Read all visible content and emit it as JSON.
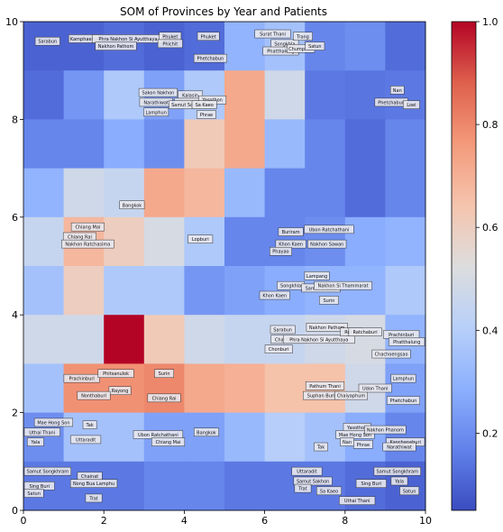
{
  "chart_data": {
    "type": "heatmap",
    "title": "SOM of Provinces by Year and Patients",
    "xlabel": "",
    "ylabel": "",
    "xlim": [
      0,
      10
    ],
    "ylim": [
      0,
      10
    ],
    "x_ticks": [
      "0",
      "2",
      "4",
      "6",
      "8",
      "10"
    ],
    "y_ticks": [
      "0",
      "2",
      "4",
      "6",
      "8",
      "10"
    ],
    "colorbar": {
      "range": [
        0.05,
        1.0
      ],
      "ticks": [
        "0.2",
        "0.4",
        "0.6",
        "0.8",
        "1.0"
      ],
      "tick_values": [
        0.2,
        0.4,
        0.6,
        0.8,
        1.0
      ],
      "colormap": "coolwarm"
    },
    "grid_values": [
      [
        0.1,
        0.1,
        0.12,
        0.1,
        0.12,
        0.3,
        0.35,
        0.18,
        0.2,
        0.12
      ],
      [
        0.12,
        0.22,
        0.38,
        0.25,
        0.38,
        0.72,
        0.48,
        0.15,
        0.14,
        0.15
      ],
      [
        0.18,
        0.18,
        0.28,
        0.2,
        0.62,
        0.72,
        0.32,
        0.18,
        0.12,
        0.18
      ],
      [
        0.3,
        0.48,
        0.45,
        0.72,
        0.68,
        0.32,
        0.18,
        0.18,
        0.12,
        0.18
      ],
      [
        0.45,
        0.68,
        0.6,
        0.5,
        0.38,
        0.18,
        0.18,
        0.2,
        0.28,
        0.3
      ],
      [
        0.35,
        0.6,
        0.38,
        0.38,
        0.22,
        0.25,
        0.28,
        0.3,
        0.3,
        0.38
      ],
      [
        0.48,
        0.48,
        1.0,
        0.62,
        0.48,
        0.45,
        0.45,
        0.48,
        0.5,
        0.3
      ],
      [
        0.35,
        0.78,
        0.78,
        0.8,
        0.72,
        0.7,
        0.65,
        0.65,
        0.48,
        0.25
      ],
      [
        0.2,
        0.35,
        0.35,
        0.25,
        0.25,
        0.32,
        0.4,
        0.35,
        0.28,
        0.18
      ],
      [
        0.15,
        0.15,
        0.15,
        0.18,
        0.18,
        0.15,
        0.15,
        0.15,
        0.12,
        0.1
      ]
    ],
    "annotations": [
      {
        "text": "Sarabun",
        "x": 0.6,
        "y": 9.6
      },
      {
        "text": "Kamphaeng",
        "x": 1.5,
        "y": 9.65
      },
      {
        "text": "Phra Nakhon Si Ayutthaya",
        "x": 2.6,
        "y": 9.65
      },
      {
        "text": "Nakhon Pathom",
        "x": 2.3,
        "y": 9.5
      },
      {
        "text": "Phuket",
        "x": 3.65,
        "y": 9.7
      },
      {
        "text": "Phichit",
        "x": 3.65,
        "y": 9.55
      },
      {
        "text": "Phuket",
        "x": 4.6,
        "y": 9.7
      },
      {
        "text": "Surat Thani",
        "x": 6.2,
        "y": 9.75
      },
      {
        "text": "Songkhla",
        "x": 6.5,
        "y": 9.55
      },
      {
        "text": "Trang",
        "x": 6.95,
        "y": 9.7
      },
      {
        "text": "Phatthalung",
        "x": 6.4,
        "y": 9.4
      },
      {
        "text": "Chumphon",
        "x": 6.9,
        "y": 9.45
      },
      {
        "text": "Satun",
        "x": 7.25,
        "y": 9.5
      },
      {
        "text": "Phetchabun",
        "x": 4.65,
        "y": 9.25
      },
      {
        "text": "Sakon Nakhon",
        "x": 3.35,
        "y": 8.55
      },
      {
        "text": "Kalasin",
        "x": 4.15,
        "y": 8.5
      },
      {
        "text": "Suphan Buri",
        "x": 4.2,
        "y": 8.35
      },
      {
        "text": "Narathiwat",
        "x": 3.3,
        "y": 8.35
      },
      {
        "text": "Lamphun",
        "x": 3.3,
        "y": 8.15
      },
      {
        "text": "Samut Songkhram",
        "x": 4.2,
        "y": 8.3
      },
      {
        "text": "Yasothon",
        "x": 4.7,
        "y": 8.4
      },
      {
        "text": "Sa Kaeo",
        "x": 4.5,
        "y": 8.3
      },
      {
        "text": "Phrae",
        "x": 4.55,
        "y": 8.1
      },
      {
        "text": "Nan",
        "x": 9.3,
        "y": 8.6
      },
      {
        "text": "Phetchabun",
        "x": 9.15,
        "y": 8.35
      },
      {
        "text": "Loei",
        "x": 9.65,
        "y": 8.3
      },
      {
        "text": "Bangkok",
        "x": 2.7,
        "y": 6.25
      },
      {
        "text": "Chiang Mai",
        "x": 1.6,
        "y": 5.8
      },
      {
        "text": "Chiang Rai",
        "x": 1.4,
        "y": 5.6
      },
      {
        "text": "Nakhon Ratchasima",
        "x": 1.6,
        "y": 5.45
      },
      {
        "text": "Lopburi",
        "x": 4.4,
        "y": 5.55
      },
      {
        "text": "Buriram",
        "x": 6.65,
        "y": 5.7
      },
      {
        "text": "Ubon Ratchathani",
        "x": 7.6,
        "y": 5.75
      },
      {
        "text": "Khon Kaen",
        "x": 6.65,
        "y": 5.45
      },
      {
        "text": "Nakhon Sawan",
        "x": 7.55,
        "y": 5.45
      },
      {
        "text": "Phayao",
        "x": 6.4,
        "y": 5.3
      },
      {
        "text": "Lampang",
        "x": 7.3,
        "y": 4.8
      },
      {
        "text": "Songkhla",
        "x": 6.65,
        "y": 4.6
      },
      {
        "text": "Samut Prakan",
        "x": 7.4,
        "y": 4.55
      },
      {
        "text": "Nakhon Si Thammarat",
        "x": 7.95,
        "y": 4.6
      },
      {
        "text": "Khon Kaen",
        "x": 6.25,
        "y": 4.4
      },
      {
        "text": "Surin",
        "x": 7.6,
        "y": 4.3
      },
      {
        "text": "Sarabun",
        "x": 6.45,
        "y": 3.7
      },
      {
        "text": "Chanthaburi",
        "x": 6.6,
        "y": 3.5
      },
      {
        "text": "Nakhon Pathom",
        "x": 7.55,
        "y": 3.75
      },
      {
        "text": "Phra Nakhon Si Ayutthaya",
        "x": 7.35,
        "y": 3.5
      },
      {
        "text": "Roi Et",
        "x": 8.15,
        "y": 3.65
      },
      {
        "text": "Ratchaburi",
        "x": 8.5,
        "y": 3.65
      },
      {
        "text": "Prachinburi",
        "x": 9.4,
        "y": 3.6
      },
      {
        "text": "Phatthalung",
        "x": 9.65,
        "y": 3.45
      },
      {
        "text": "Chonburi",
        "x": 6.35,
        "y": 3.3
      },
      {
        "text": "Chachoengsao",
        "x": 9.15,
        "y": 3.2
      },
      {
        "text": "Prachinburi",
        "x": 1.45,
        "y": 2.7
      },
      {
        "text": "Phitsanulok",
        "x": 2.3,
        "y": 2.8
      },
      {
        "text": "Surin",
        "x": 3.5,
        "y": 2.8
      },
      {
        "text": "Rayong",
        "x": 2.4,
        "y": 2.45
      },
      {
        "text": "Nonthaburi",
        "x": 1.75,
        "y": 2.35
      },
      {
        "text": "Chiang Rai",
        "x": 3.5,
        "y": 2.3
      },
      {
        "text": "Pathum Thani",
        "x": 7.5,
        "y": 2.55
      },
      {
        "text": "Suphan Buri",
        "x": 7.4,
        "y": 2.35
      },
      {
        "text": "Chaiyaphum",
        "x": 8.15,
        "y": 2.35
      },
      {
        "text": "Udon Thani",
        "x": 8.75,
        "y": 2.5
      },
      {
        "text": "Lamphun",
        "x": 9.45,
        "y": 2.7
      },
      {
        "text": "Phetchabun",
        "x": 9.45,
        "y": 2.25
      },
      {
        "text": "Mae Hong Son",
        "x": 0.75,
        "y": 1.8
      },
      {
        "text": "Uthai Thani",
        "x": 0.4,
        "y": 1.6
      },
      {
        "text": "Tak",
        "x": 1.65,
        "y": 1.75
      },
      {
        "text": "Uttaradit",
        "x": 1.55,
        "y": 1.45
      },
      {
        "text": "Yala",
        "x": 0.3,
        "y": 1.4
      },
      {
        "text": "Ubon Ratchathani",
        "x": 3.35,
        "y": 1.55
      },
      {
        "text": "Chiang Mai",
        "x": 3.6,
        "y": 1.4
      },
      {
        "text": "Bangkok",
        "x": 4.55,
        "y": 1.6
      },
      {
        "text": "Yasothon",
        "x": 8.3,
        "y": 1.7
      },
      {
        "text": "Mae Hong Son",
        "x": 8.25,
        "y": 1.55
      },
      {
        "text": "Nakhon Phanom",
        "x": 9.0,
        "y": 1.65
      },
      {
        "text": "Kanchanaburi",
        "x": 9.6,
        "y": 1.4
      },
      {
        "text": "Narathiwat",
        "x": 9.35,
        "y": 1.3
      },
      {
        "text": "Phrae",
        "x": 8.45,
        "y": 1.35
      },
      {
        "text": "Nan",
        "x": 8.05,
        "y": 1.4
      },
      {
        "text": "Tak",
        "x": 7.4,
        "y": 1.3
      },
      {
        "text": "Samut Songkhram",
        "x": 0.5,
        "y": 0.8
      },
      {
        "text": "Chainat",
        "x": 1.65,
        "y": 0.7
      },
      {
        "text": "Nong Bua Lamphu",
        "x": 1.75,
        "y": 0.55
      },
      {
        "text": "Sing Buri",
        "x": 0.25,
        "y": 0.5
      },
      {
        "text": "Satun",
        "x": 0.25,
        "y": 0.35
      },
      {
        "text": "Trat",
        "x": 1.75,
        "y": 0.25
      },
      {
        "text": "Uttaradit",
        "x": 7.05,
        "y": 0.8
      },
      {
        "text": "Samut Sakhon",
        "x": 7.2,
        "y": 0.6
      },
      {
        "text": "Trat",
        "x": 6.95,
        "y": 0.45
      },
      {
        "text": "Sa Kaeo",
        "x": 7.6,
        "y": 0.4
      },
      {
        "text": "Samut Songkhram",
        "x": 9.3,
        "y": 0.8
      },
      {
        "text": "Sing Buri",
        "x": 8.65,
        "y": 0.55
      },
      {
        "text": "Yala",
        "x": 9.35,
        "y": 0.6
      },
      {
        "text": "Satun",
        "x": 9.6,
        "y": 0.4
      },
      {
        "text": "Uthai Thani",
        "x": 8.3,
        "y": 0.2
      }
    ]
  }
}
